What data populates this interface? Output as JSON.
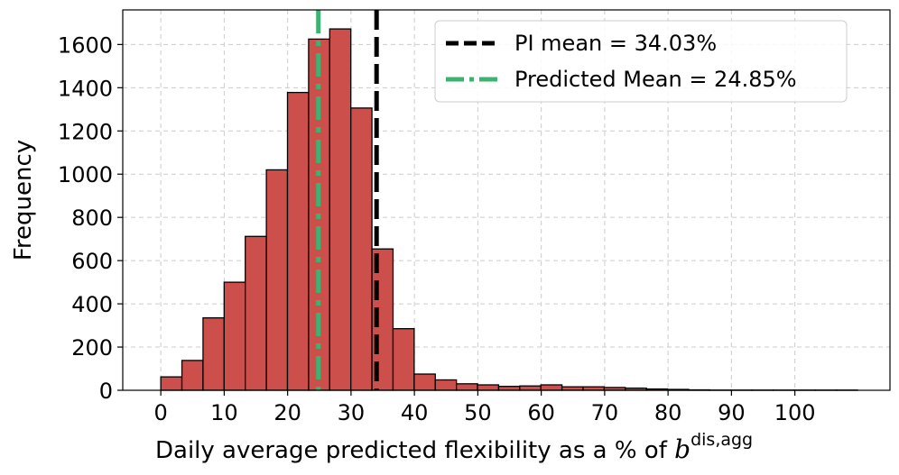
{
  "chart_data": {
    "type": "bar",
    "title": "",
    "xlabel": "Daily average predicted flexibility as a % of ",
    "xlabel_symbol": "b",
    "xlabel_superscript": "dis,agg",
    "ylabel": "Frequency",
    "xlim": [
      -6,
      115
    ],
    "ylim": [
      0,
      1760
    ],
    "xticks": [
      0,
      10,
      20,
      30,
      40,
      50,
      60,
      70,
      80,
      90,
      100
    ],
    "xtick_labels": [
      "0",
      "10",
      "20",
      "30",
      "40",
      "50",
      "60",
      "70",
      "80",
      "90",
      "100"
    ],
    "yticks": [
      0,
      200,
      400,
      600,
      800,
      1000,
      1200,
      1400,
      1600
    ],
    "ytick_labels": [
      "0",
      "200",
      "400",
      "600",
      "800",
      "1000",
      "1200",
      "1400",
      "1600"
    ],
    "grid": true,
    "bin_start": 0,
    "bin_width": 3.33,
    "bar_color": "#cd4f4b",
    "bar_edge_color": "#000000",
    "values": [
      62,
      138,
      335,
      500,
      712,
      1020,
      1378,
      1625,
      1672,
      1306,
      654,
      285,
      75,
      48,
      30,
      25,
      18,
      20,
      25,
      16,
      16,
      13,
      10,
      6,
      4,
      2,
      1,
      1,
      1,
      1,
      1,
      1,
      1
    ],
    "reference_lines": [
      {
        "name": "PI mean",
        "value": 34.03,
        "label": "PI mean = 34.03%",
        "color": "#000000",
        "style": "dashed"
      },
      {
        "name": "Predicted Mean",
        "value": 24.85,
        "label": "Predicted Mean = 24.85%",
        "color": "#3cb371",
        "style": "dashdot"
      }
    ],
    "legend_position": "top-right"
  }
}
